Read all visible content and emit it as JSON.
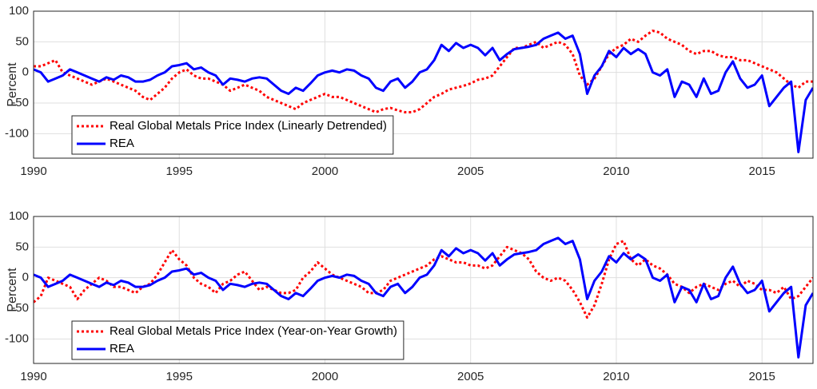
{
  "chart_data": [
    {
      "type": "line",
      "ylabel": "Percent",
      "xlim": [
        1990,
        2016.75
      ],
      "ylim": [
        -140,
        100
      ],
      "xticks": [
        1990,
        1995,
        2000,
        2005,
        2010,
        2015
      ],
      "yticks": [
        -100,
        -50,
        0,
        50,
        100
      ],
      "grid": true,
      "legend": "lower left",
      "x": [
        1990,
        1990.25,
        1990.5,
        1990.75,
        1991,
        1991.25,
        1991.5,
        1991.75,
        1992,
        1992.25,
        1992.5,
        1992.75,
        1993,
        1993.25,
        1993.5,
        1993.75,
        1994,
        1994.25,
        1994.5,
        1994.75,
        1995,
        1995.25,
        1995.5,
        1995.75,
        1996,
        1996.25,
        1996.5,
        1996.75,
        1997,
        1997.25,
        1997.5,
        1997.75,
        1998,
        1998.25,
        1998.5,
        1998.75,
        1999,
        1999.25,
        1999.5,
        1999.75,
        2000,
        2000.25,
        2000.5,
        2000.75,
        2001,
        2001.25,
        2001.5,
        2001.75,
        2002,
        2002.25,
        2002.5,
        2002.75,
        2003,
        2003.25,
        2003.5,
        2003.75,
        2004,
        2004.25,
        2004.5,
        2004.75,
        2005,
        2005.25,
        2005.5,
        2005.75,
        2006,
        2006.25,
        2006.5,
        2006.75,
        2007,
        2007.25,
        2007.5,
        2007.75,
        2008,
        2008.25,
        2008.5,
        2008.75,
        2009,
        2009.25,
        2009.5,
        2009.75,
        2010,
        2010.25,
        2010.5,
        2010.75,
        2011,
        2011.25,
        2011.5,
        2011.75,
        2012,
        2012.25,
        2012.5,
        2012.75,
        2013,
        2013.25,
        2013.5,
        2013.75,
        2014,
        2014.25,
        2014.5,
        2014.75,
        2015,
        2015.25,
        2015.5,
        2015.75,
        2016,
        2016.25,
        2016.5,
        2016.75
      ],
      "series": [
        {
          "name": "Real Global Metals Price Index (Linearly Detrended)",
          "color": "#ff0000",
          "dashed": true,
          "values": [
            10,
            10,
            15,
            20,
            0,
            -5,
            -10,
            -15,
            -20,
            -15,
            -10,
            -15,
            -20,
            -25,
            -30,
            -40,
            -45,
            -35,
            -25,
            -10,
            0,
            5,
            -5,
            -10,
            -10,
            -15,
            -20,
            -30,
            -25,
            -20,
            -25,
            -30,
            -40,
            -45,
            -50,
            -55,
            -60,
            -50,
            -45,
            -40,
            -35,
            -40,
            -40,
            -45,
            -50,
            -55,
            -60,
            -65,
            -60,
            -58,
            -62,
            -65,
            -65,
            -60,
            -50,
            -40,
            -35,
            -28,
            -25,
            -22,
            -18,
            -12,
            -10,
            -5,
            10,
            25,
            40,
            40,
            45,
            50,
            40,
            45,
            50,
            45,
            30,
            -5,
            -20,
            -10,
            10,
            30,
            40,
            45,
            55,
            50,
            60,
            68,
            65,
            55,
            50,
            45,
            35,
            30,
            35,
            35,
            28,
            25,
            25,
            20,
            20,
            15,
            10,
            5,
            0,
            -10,
            -20,
            -25,
            -15,
            -15
          ]
        },
        {
          "name": "REA",
          "color": "#0000ff",
          "dashed": false,
          "values": [
            5,
            0,
            -15,
            -10,
            -5,
            5,
            0,
            -5,
            -10,
            -15,
            -8,
            -12,
            -5,
            -8,
            -15,
            -15,
            -12,
            -5,
            0,
            10,
            12,
            15,
            5,
            8,
            0,
            -5,
            -20,
            -10,
            -12,
            -15,
            -10,
            -8,
            -10,
            -20,
            -30,
            -35,
            -25,
            -30,
            -18,
            -5,
            0,
            3,
            0,
            5,
            3,
            -5,
            -10,
            -25,
            -30,
            -15,
            -10,
            -25,
            -15,
            0,
            5,
            20,
            45,
            35,
            48,
            40,
            45,
            40,
            28,
            40,
            20,
            30,
            38,
            40,
            42,
            45,
            55,
            60,
            65,
            55,
            60,
            30,
            -35,
            -5,
            10,
            35,
            25,
            40,
            30,
            38,
            30,
            0,
            -5,
            5,
            -40,
            -15,
            -20,
            -40,
            -10,
            -35,
            -30,
            0,
            18,
            -10,
            -25,
            -20,
            -5,
            -55,
            -40,
            -25,
            -15,
            -130,
            -45,
            -25
          ]
        }
      ]
    },
    {
      "type": "line",
      "ylabel": "Percent",
      "xlim": [
        1990,
        2016.75
      ],
      "ylim": [
        -140,
        100
      ],
      "xticks": [
        1990,
        1995,
        2000,
        2005,
        2010,
        2015
      ],
      "yticks": [
        -100,
        -50,
        0,
        50,
        100
      ],
      "grid": true,
      "legend": "lower left",
      "x": [
        1990,
        1990.25,
        1990.5,
        1990.75,
        1991,
        1991.25,
        1991.5,
        1991.75,
        1992,
        1992.25,
        1992.5,
        1992.75,
        1993,
        1993.25,
        1993.5,
        1993.75,
        1994,
        1994.25,
        1994.5,
        1994.75,
        1995,
        1995.25,
        1995.5,
        1995.75,
        1996,
        1996.25,
        1996.5,
        1996.75,
        1997,
        1997.25,
        1997.5,
        1997.75,
        1998,
        1998.25,
        1998.5,
        1998.75,
        1999,
        1999.25,
        1999.5,
        1999.75,
        2000,
        2000.25,
        2000.5,
        2000.75,
        2001,
        2001.25,
        2001.5,
        2001.75,
        2002,
        2002.25,
        2002.5,
        2002.75,
        2003,
        2003.25,
        2003.5,
        2003.75,
        2004,
        2004.25,
        2004.5,
        2004.75,
        2005,
        2005.25,
        2005.5,
        2005.75,
        2006,
        2006.25,
        2006.5,
        2006.75,
        2007,
        2007.25,
        2007.5,
        2007.75,
        2008,
        2008.25,
        2008.5,
        2008.75,
        2009,
        2009.25,
        2009.5,
        2009.75,
        2010,
        2010.25,
        2010.5,
        2010.75,
        2011,
        2011.25,
        2011.5,
        2011.75,
        2012,
        2012.25,
        2012.5,
        2012.75,
        2013,
        2013.25,
        2013.5,
        2013.75,
        2014,
        2014.25,
        2014.5,
        2014.75,
        2015,
        2015.25,
        2015.5,
        2015.75,
        2016,
        2016.25,
        2016.5,
        2016.75
      ],
      "series": [
        {
          "name": "Real Global Metals Price Index (Year-on-Year Growth)",
          "color": "#ff0000",
          "dashed": true,
          "values": [
            -40,
            -30,
            0,
            -5,
            -10,
            -15,
            -35,
            -20,
            -10,
            0,
            -5,
            -15,
            -15,
            -20,
            -25,
            -15,
            -10,
            5,
            25,
            45,
            30,
            20,
            0,
            -10,
            -15,
            -25,
            -10,
            -5,
            5,
            10,
            -5,
            -20,
            -15,
            -20,
            -25,
            -25,
            -20,
            0,
            10,
            25,
            15,
            5,
            0,
            -5,
            -10,
            -15,
            -25,
            -25,
            -20,
            -5,
            0,
            5,
            10,
            15,
            20,
            30,
            35,
            30,
            25,
            25,
            20,
            20,
            15,
            20,
            35,
            50,
            45,
            40,
            30,
            10,
            0,
            -5,
            0,
            -5,
            -20,
            -40,
            -65,
            -45,
            -10,
            30,
            55,
            60,
            30,
            20,
            30,
            20,
            15,
            5,
            -10,
            -15,
            -25,
            -15,
            -10,
            -15,
            -20,
            -10,
            -5,
            -15,
            -5,
            -10,
            -20,
            -20,
            -25,
            -15,
            -35,
            -30,
            -15,
            0
          ]
        },
        {
          "name": "REA",
          "color": "#0000ff",
          "dashed": false,
          "values": [
            5,
            0,
            -15,
            -10,
            -5,
            5,
            0,
            -5,
            -10,
            -15,
            -8,
            -12,
            -5,
            -8,
            -15,
            -15,
            -12,
            -5,
            0,
            10,
            12,
            15,
            5,
            8,
            0,
            -5,
            -20,
            -10,
            -12,
            -15,
            -10,
            -8,
            -10,
            -20,
            -30,
            -35,
            -25,
            -30,
            -18,
            -5,
            0,
            3,
            0,
            5,
            3,
            -5,
            -10,
            -25,
            -30,
            -15,
            -10,
            -25,
            -15,
            0,
            5,
            20,
            45,
            35,
            48,
            40,
            45,
            40,
            28,
            40,
            20,
            30,
            38,
            40,
            42,
            45,
            55,
            60,
            65,
            55,
            60,
            30,
            -35,
            -5,
            10,
            35,
            25,
            40,
            30,
            38,
            30,
            0,
            -5,
            5,
            -40,
            -15,
            -20,
            -40,
            -10,
            -35,
            -30,
            0,
            18,
            -10,
            -25,
            -20,
            -5,
            -55,
            -40,
            -25,
            -15,
            -130,
            -45,
            -25
          ]
        }
      ]
    }
  ]
}
